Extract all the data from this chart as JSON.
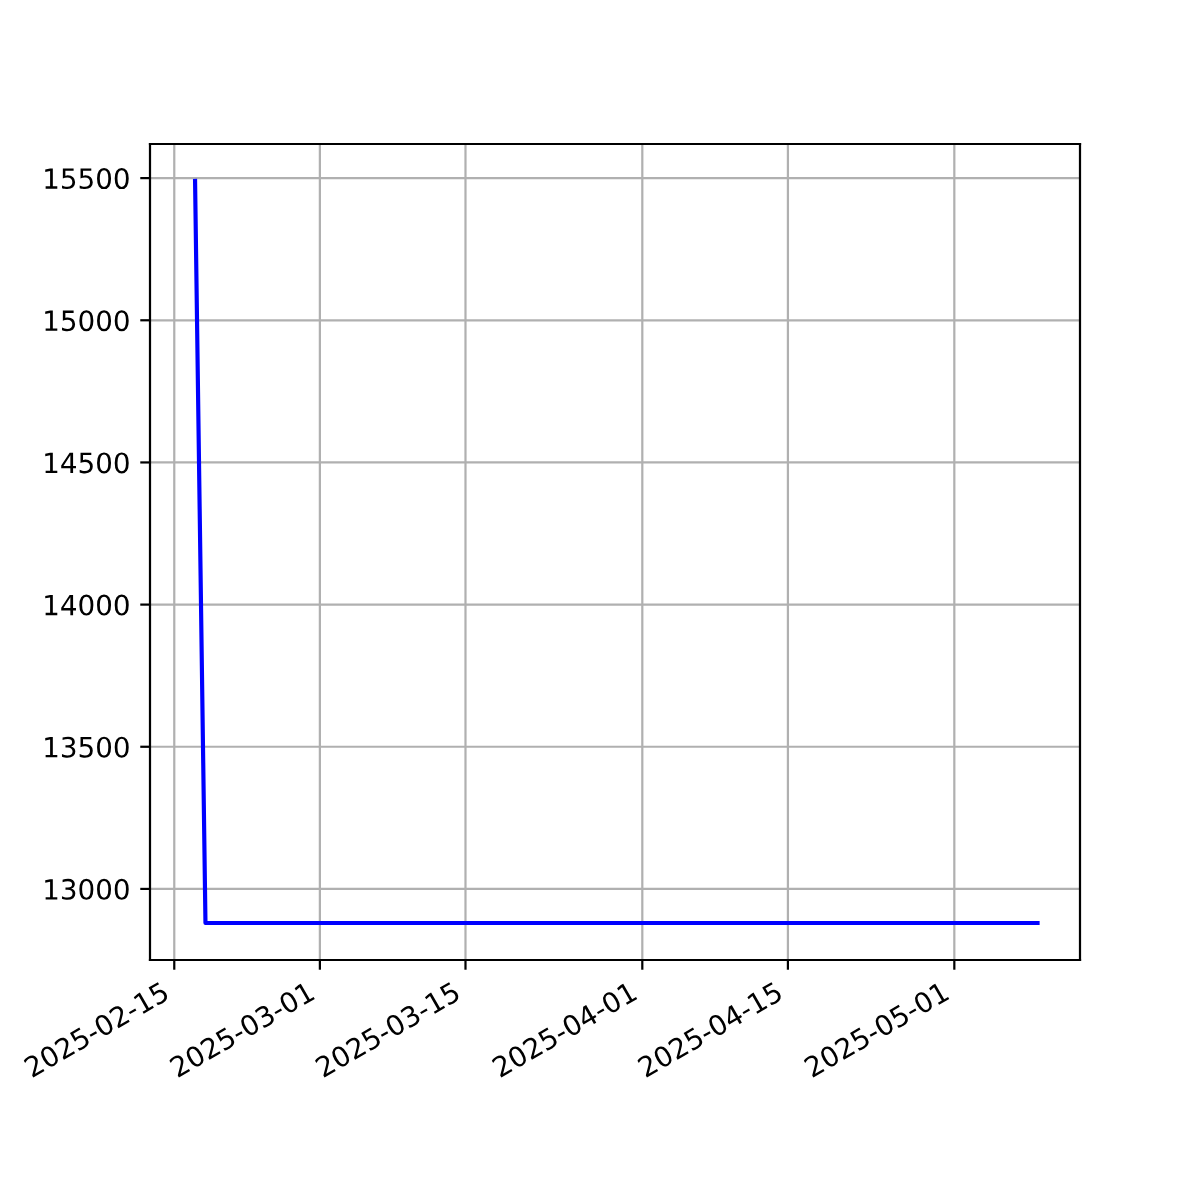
{
  "chart_data": {
    "type": "line",
    "x": [
      "2025-02-17",
      "2025-02-18",
      "2025-05-09"
    ],
    "series": [
      {
        "color": "#0000ff",
        "values": [
          15490,
          12880,
          12880
        ]
      }
    ],
    "xlim": [
      "2025-02-12T16:00",
      "2025-05-13T02:00"
    ],
    "xticks": [
      "2025-02-15",
      "2025-03-01",
      "2025-03-15",
      "2025-04-01",
      "2025-04-15",
      "2025-05-01"
    ],
    "ylim": [
      12750,
      15620
    ],
    "yticks": [
      13000,
      13500,
      14000,
      14500,
      15000,
      15500
    ],
    "grid": true,
    "legend": false,
    "marker": "none",
    "line_style": "solid"
  }
}
